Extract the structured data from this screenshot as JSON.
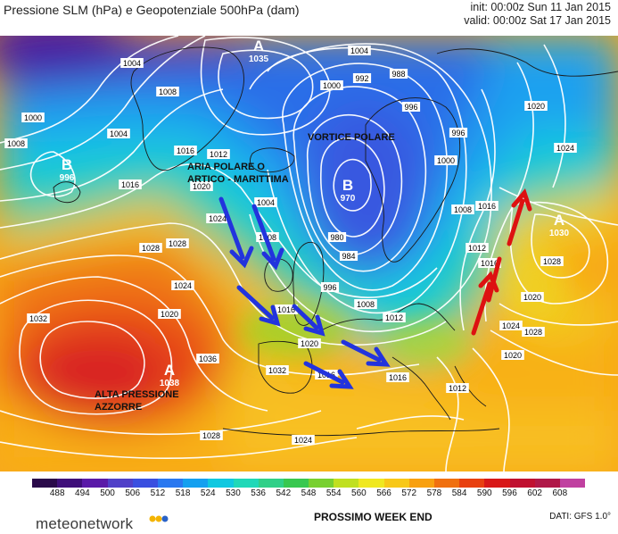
{
  "header": {
    "title": "Pressione SLM (hPa) e Geopotenziale 500hPa (dam)",
    "init": "init: 00:00z Sun 11 Jan 2015",
    "valid": "valid: 00:00z Sat 17 Jan 2015"
  },
  "map": {
    "annotations": {
      "polar_vortex": "VORTICE POLARE",
      "polar_air_line1": "ARIA POLARE O",
      "polar_air_line2": "ARTICO - MARITTIMA",
      "azores_line1": "ALTA PRESSIONE",
      "azores_line2": "AZZORRE"
    },
    "centers": [
      {
        "type": "A",
        "value": "1035"
      },
      {
        "type": "B",
        "value": "970"
      },
      {
        "type": "A",
        "value": "1038"
      },
      {
        "type": "A",
        "value": "1030"
      },
      {
        "type": "B",
        "value": "996"
      }
    ],
    "isobar_labels": [
      "1004",
      "1008",
      "1000",
      "1004",
      "1008",
      "1012",
      "1016",
      "1020",
      "1016",
      "1000",
      "992",
      "988",
      "996",
      "1004",
      "1000",
      "1008",
      "996",
      "1016",
      "1024",
      "1012",
      "1016",
      "1020",
      "1024",
      "1028",
      "1028",
      "1024",
      "1020",
      "1032",
      "1036",
      "1032",
      "1028",
      "1024",
      "1020",
      "1004",
      "1008",
      "996",
      "984",
      "980",
      "1008",
      "1012",
      "1016",
      "1020",
      "1016",
      "1028",
      "1016",
      "1012",
      "1024",
      "1020",
      "1028"
    ],
    "arrows": {
      "blue_count": 6,
      "red_count": 3,
      "blue_color": "#2233dd",
      "red_color": "#dd1111"
    }
  },
  "colorbar": {
    "ticks": [
      "488",
      "494",
      "500",
      "506",
      "512",
      "518",
      "524",
      "530",
      "536",
      "542",
      "548",
      "554",
      "560",
      "566",
      "572",
      "578",
      "584",
      "590",
      "596",
      "602",
      "608"
    ],
    "colors": [
      "#2a0a4a",
      "#3f0f7a",
      "#5a1aa8",
      "#5040c8",
      "#3a4fe0",
      "#2a78f0",
      "#14a0f0",
      "#10c8e0",
      "#20d8b8",
      "#30d088",
      "#38c850",
      "#78d030",
      "#c0e020",
      "#f0e820",
      "#f8c818",
      "#f8a010",
      "#f07010",
      "#e84010",
      "#d81818",
      "#c01030",
      "#b01848",
      "#c040a0"
    ]
  },
  "footer": {
    "logo": "meteonetwork",
    "logo_dot_colors": [
      "#f4b400",
      "#f4b400",
      "#2a63c8"
    ],
    "caption": "PROSSIMO WEEK END",
    "source": "DATI:  GFS  1.0°"
  }
}
